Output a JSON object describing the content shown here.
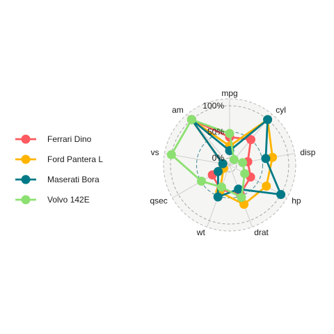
{
  "chart_data": {
    "type": "radar",
    "axes": [
      "mpg",
      "cyl",
      "disp",
      "hp",
      "drat",
      "wt",
      "qsec",
      "vs",
      "am"
    ],
    "grid_labels": [
      "0%",
      "50%",
      "100%"
    ],
    "grid_values": [
      0,
      0.5,
      1
    ],
    "legend_position": "left",
    "series": [
      {
        "name": "Ferrari Dino",
        "color": "#FF5A5F",
        "values": [
          0.4,
          0.5,
          0.22,
          0.33,
          0.46,
          0.37,
          0.25,
          0.0,
          1.0
        ]
      },
      {
        "name": "Ford Pantera L",
        "color": "#FFB400",
        "values": [
          0.23,
          1.0,
          0.7,
          0.68,
          0.67,
          0.42,
          0.0,
          0.0,
          1.0
        ]
      },
      {
        "name": "Maserati Bora",
        "color": "#007A87",
        "values": [
          0.14,
          1.0,
          0.57,
          1.0,
          0.36,
          0.52,
          0.12,
          0.0,
          1.0
        ]
      },
      {
        "name": "Volvo 142E",
        "color": "#8CE071",
        "values": [
          0.47,
          0.0,
          0.12,
          0.2,
          0.53,
          0.32,
          0.49,
          1.0,
          1.0
        ]
      }
    ]
  }
}
